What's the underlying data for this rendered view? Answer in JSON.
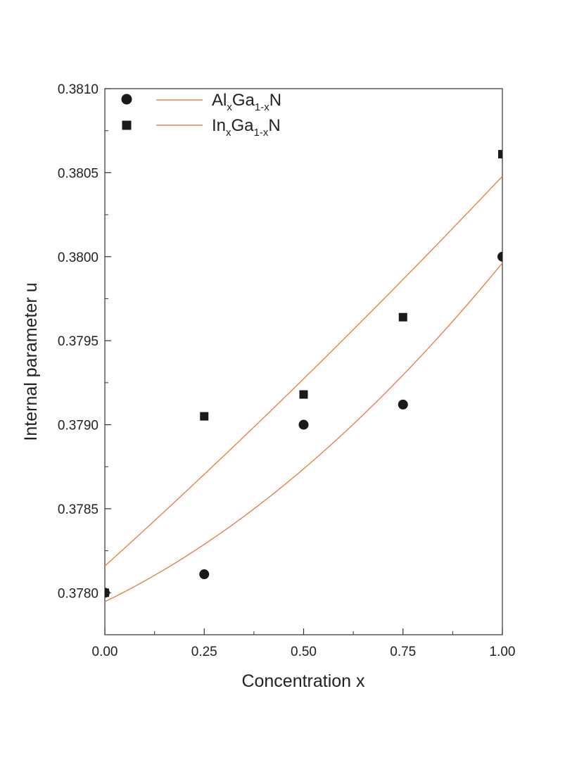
{
  "chart_data": {
    "type": "scatter",
    "xlabel": "Concentration x",
    "ylabel": "Internal parameter u",
    "xlim": [
      0,
      1
    ],
    "ylim": [
      0.37775,
      0.381
    ],
    "x_ticks": [
      0,
      0.25,
      0.5,
      0.75,
      1.0
    ],
    "x_tick_labels": [
      "0.00",
      "0.25",
      "0.50",
      "0.75",
      "1.00"
    ],
    "y_ticks": [
      0.378,
      0.3785,
      0.379,
      0.3795,
      0.38,
      0.3805,
      0.381
    ],
    "y_tick_labels": [
      "0.3780",
      "0.3785",
      "0.3790",
      "0.3795",
      "0.3800",
      "0.3805",
      "0.3810"
    ],
    "grid": false,
    "legend_position": "top-left",
    "series": [
      {
        "name": "AlxGa1-xN",
        "name_parts": {
          "a": "Al",
          "a_sub": "x",
          "b": "Ga",
          "b_sub": "1-x",
          "c": "N"
        },
        "marker": "circle",
        "color": "#1a1a1a",
        "x": [
          0,
          0.25,
          0.5,
          0.75,
          1.0
        ],
        "y": [
          0.378,
          0.37811,
          0.379,
          0.37912,
          0.38
        ]
      },
      {
        "name": "InxGa1-xN",
        "name_parts": {
          "a": "In",
          "a_sub": "x",
          "b": "Ga",
          "b_sub": "1-x",
          "c": "N"
        },
        "marker": "square",
        "color": "#1a1a1a",
        "x": [
          0,
          0.25,
          0.5,
          0.75,
          1.0
        ],
        "y": [
          0.378,
          0.37905,
          0.37918,
          0.37964,
          0.38061
        ]
      }
    ],
    "fits": [
      {
        "series": "AlxGa1-xN",
        "color": "#e8804a",
        "x": [
          0,
          0.25,
          0.5,
          0.75,
          1.0
        ],
        "y": [
          0.37795,
          0.37828,
          0.37874,
          0.3793,
          0.37996
        ]
      },
      {
        "series": "InxGa1-xN",
        "color": "#e8804a",
        "x": [
          0,
          0.25,
          0.5,
          0.75,
          1.0
        ],
        "y": [
          0.37816,
          0.3787,
          0.37928,
          0.37986,
          0.38048
        ]
      }
    ]
  }
}
